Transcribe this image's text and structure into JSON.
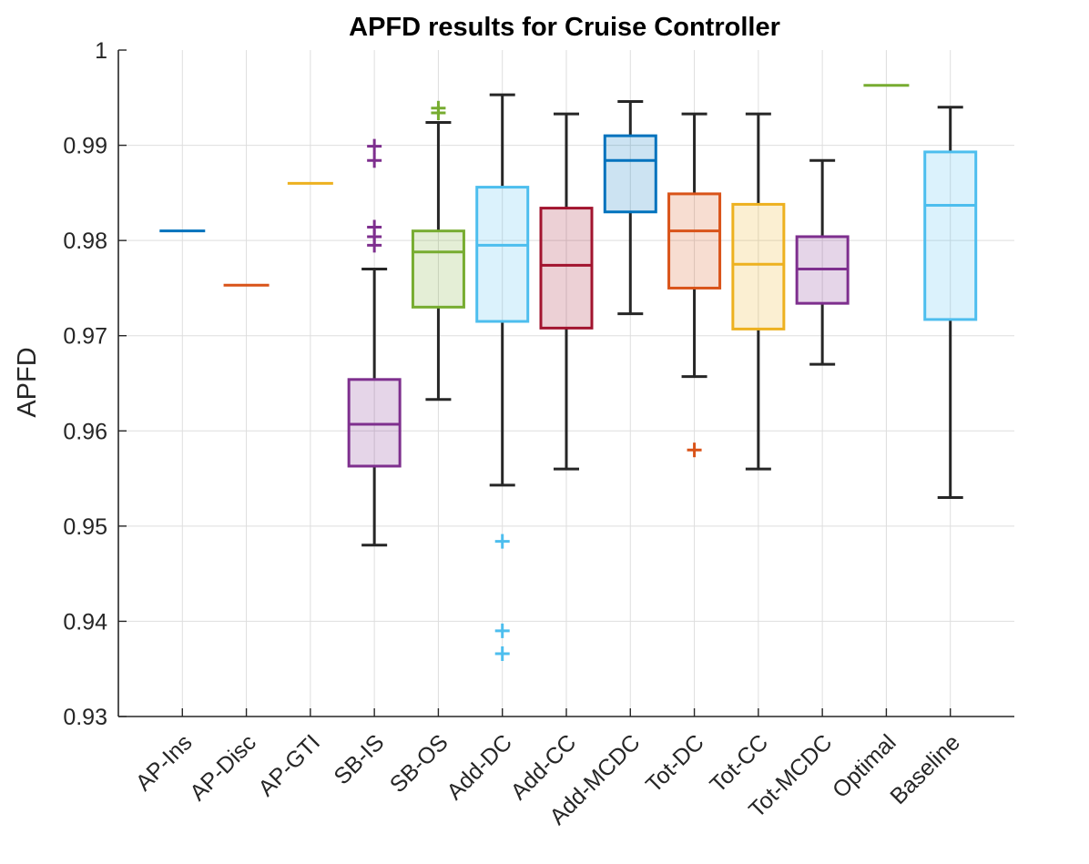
{
  "chart_data": {
    "type": "box",
    "title": "APFD results for Cruise Controller",
    "xlabel": "",
    "ylabel": "APFD",
    "ylim": [
      0.93,
      1.0
    ],
    "yticks": [
      0.93,
      0.94,
      0.95,
      0.96,
      0.97,
      0.98,
      0.99,
      1
    ],
    "ytick_labels": [
      "0.93",
      "0.94",
      "0.95",
      "0.96",
      "0.97",
      "0.98",
      "0.99",
      "1"
    ],
    "grid": true,
    "categories": [
      "AP-Ins",
      "AP-Disc",
      "AP-GTI",
      "SB-IS",
      "SB-OS",
      "Add-DC",
      "Add-CC",
      "Add-MCDC",
      "Tot-DC",
      "Tot-CC",
      "Tot-MCDC",
      "Optimal",
      "Baseline"
    ],
    "boxes": [
      {
        "name": "AP-Ins",
        "color": "#0072BD",
        "min": 0.981,
        "q1": 0.981,
        "median": 0.981,
        "q3": 0.981,
        "max": 0.981,
        "outliers": []
      },
      {
        "name": "AP-Disc",
        "color": "#D95319",
        "min": 0.9753,
        "q1": 0.9753,
        "median": 0.9753,
        "q3": 0.9753,
        "max": 0.9753,
        "outliers": []
      },
      {
        "name": "AP-GTI",
        "color": "#EDB120",
        "min": 0.986,
        "q1": 0.986,
        "median": 0.986,
        "q3": 0.986,
        "max": 0.986,
        "outliers": []
      },
      {
        "name": "SB-IS",
        "color": "#7E2F8E",
        "min": 0.948,
        "q1": 0.9563,
        "median": 0.9607,
        "q3": 0.9654,
        "max": 0.977,
        "outliers": [
          0.9795,
          0.9804,
          0.9814,
          0.9884,
          0.9899
        ]
      },
      {
        "name": "SB-OS",
        "color": "#77AC30",
        "min": 0.9633,
        "q1": 0.973,
        "median": 0.9788,
        "q3": 0.981,
        "max": 0.9924,
        "outliers": [
          0.9934,
          0.9939
        ]
      },
      {
        "name": "Add-DC",
        "color": "#4DBEEE",
        "min": 0.9543,
        "q1": 0.9715,
        "median": 0.9795,
        "q3": 0.9856,
        "max": 0.9953,
        "outliers": [
          0.9366,
          0.939,
          0.9484
        ]
      },
      {
        "name": "Add-CC",
        "color": "#A2142F",
        "min": 0.956,
        "q1": 0.9708,
        "median": 0.9774,
        "q3": 0.9834,
        "max": 0.9933,
        "outliers": []
      },
      {
        "name": "Add-MCDC",
        "color": "#0072BD",
        "min": 0.9723,
        "q1": 0.983,
        "median": 0.9884,
        "q3": 0.991,
        "max": 0.9946,
        "outliers": []
      },
      {
        "name": "Tot-DC",
        "color": "#D95319",
        "min": 0.9657,
        "q1": 0.975,
        "median": 0.981,
        "q3": 0.9849,
        "max": 0.9933,
        "outliers": [
          0.958
        ]
      },
      {
        "name": "Tot-CC",
        "color": "#EDB120",
        "min": 0.956,
        "q1": 0.9707,
        "median": 0.9775,
        "q3": 0.9838,
        "max": 0.9933,
        "outliers": []
      },
      {
        "name": "Tot-MCDC",
        "color": "#7E2F8E",
        "min": 0.967,
        "q1": 0.9734,
        "median": 0.977,
        "q3": 0.9804,
        "max": 0.9884,
        "outliers": []
      },
      {
        "name": "Optimal",
        "color": "#77AC30",
        "min": 0.9963,
        "q1": 0.9963,
        "median": 0.9963,
        "q3": 0.9963,
        "max": 0.9963,
        "outliers": []
      },
      {
        "name": "Baseline",
        "color": "#4DBEEE",
        "min": 0.953,
        "q1": 0.9717,
        "median": 0.9837,
        "q3": 0.9893,
        "max": 0.994,
        "outliers": []
      }
    ]
  },
  "colors": {
    "axis": "#262626",
    "grid": "#dedede",
    "whisker": "#262626",
    "background": "#ffffff"
  }
}
